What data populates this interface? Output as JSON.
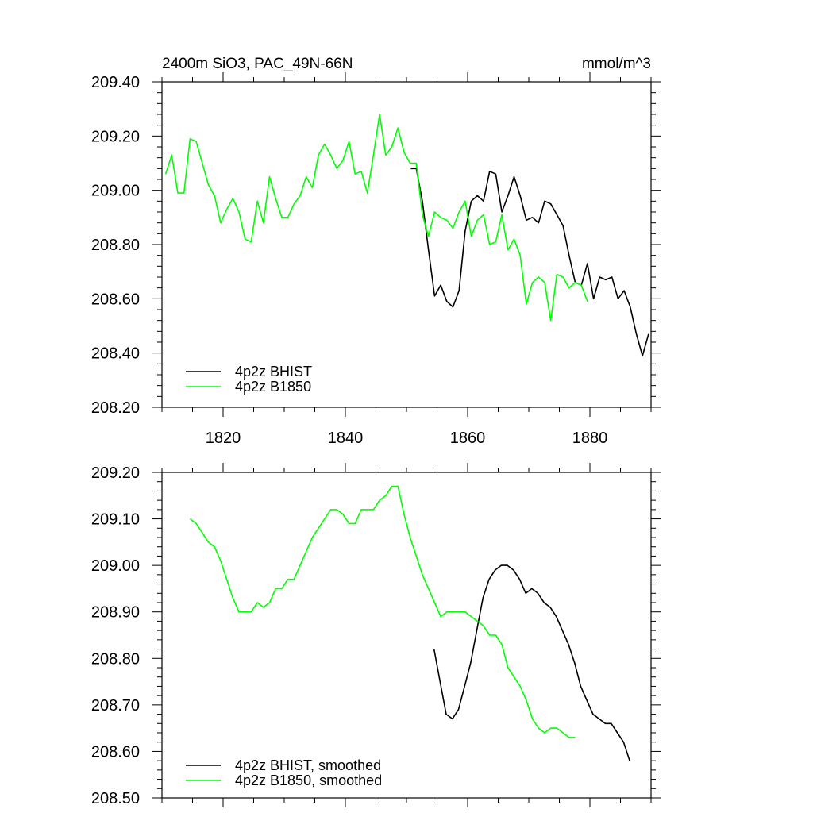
{
  "chart_data": [
    {
      "type": "line",
      "title": "2400m SiO3, PAC_49N-66N",
      "units": "mmol/m^3",
      "xlim": [
        1810,
        1890
      ],
      "ylim": [
        208.2,
        209.4
      ],
      "x_ticks": [
        1820,
        1840,
        1860,
        1880
      ],
      "x_tick_labels": [
        "1820",
        "1840",
        "1860",
        "1880"
      ],
      "y_ticks": [
        208.2,
        208.4,
        208.6,
        208.8,
        209.0,
        209.2,
        209.4
      ],
      "y_tick_labels": [
        "208.20",
        "208.40",
        "208.60",
        "208.80",
        "209.00",
        "209.20",
        "209.40"
      ],
      "legend": {
        "placement": "bottom-left"
      },
      "series": [
        {
          "name": "4p2z BHIST",
          "color": "#000000",
          "x": [
            1850.7,
            1851.6,
            1852.6,
            1853.6,
            1854.6,
            1855.6,
            1856.6,
            1857.6,
            1858.6,
            1859.6,
            1860.6,
            1861.6,
            1862.6,
            1863.6,
            1864.6,
            1865.6,
            1866.6,
            1867.6,
            1868.6,
            1869.6,
            1870.6,
            1871.6,
            1872.6,
            1873.6,
            1874.6,
            1875.6,
            1876.6,
            1877.6,
            1878.6,
            1879.6,
            1880.6,
            1881.6,
            1882.6,
            1883.6,
            1884.6,
            1885.6,
            1886.6,
            1887.6,
            1888.6,
            1889.6
          ],
          "values": [
            209.08,
            209.08,
            208.96,
            208.78,
            208.61,
            208.65,
            208.59,
            208.57,
            208.63,
            208.85,
            208.96,
            208.98,
            208.96,
            209.07,
            209.06,
            208.92,
            208.98,
            209.05,
            208.98,
            208.89,
            208.9,
            208.88,
            208.96,
            208.95,
            208.91,
            208.87,
            208.76,
            208.66,
            208.65,
            208.73,
            208.6,
            208.68,
            208.67,
            208.68,
            208.6,
            208.63,
            208.57,
            208.47,
            208.39,
            208.47
          ]
        },
        {
          "name": "4p2z B1850",
          "color": "#00ff00",
          "x": [
            1810.6,
            1811.6,
            1812.6,
            1813.6,
            1814.6,
            1815.6,
            1816.6,
            1817.6,
            1818.6,
            1819.6,
            1820.6,
            1821.6,
            1822.6,
            1823.6,
            1824.6,
            1825.6,
            1826.6,
            1827.6,
            1828.6,
            1829.6,
            1830.6,
            1831.6,
            1832.6,
            1833.6,
            1834.6,
            1835.6,
            1836.6,
            1837.6,
            1838.6,
            1839.6,
            1840.6,
            1841.6,
            1842.6,
            1843.6,
            1844.6,
            1845.6,
            1846.6,
            1847.6,
            1848.6,
            1849.6,
            1850.6,
            1851.6,
            1852.6,
            1853.6,
            1854.6,
            1855.6,
            1856.6,
            1857.6,
            1858.6,
            1859.6,
            1860.6,
            1861.6,
            1862.6,
            1863.6,
            1864.6,
            1865.6,
            1866.6,
            1867.6,
            1868.6,
            1869.6,
            1870.6,
            1871.6,
            1872.6,
            1873.6,
            1874.6,
            1875.6,
            1876.6,
            1877.6,
            1878.6,
            1879.6
          ],
          "values": [
            209.06,
            209.13,
            208.99,
            208.99,
            209.19,
            209.18,
            209.1,
            209.02,
            208.98,
            208.88,
            208.93,
            208.97,
            208.92,
            208.82,
            208.81,
            208.96,
            208.88,
            209.05,
            208.97,
            208.9,
            208.9,
            208.95,
            208.98,
            209.05,
            209.01,
            209.13,
            209.17,
            209.13,
            209.08,
            209.11,
            209.18,
            209.06,
            209.07,
            208.99,
            209.13,
            209.28,
            209.13,
            209.16,
            209.23,
            209.14,
            209.1,
            209.1,
            208.91,
            208.83,
            208.92,
            208.9,
            208.89,
            208.86,
            208.92,
            208.96,
            208.83,
            208.89,
            208.91,
            208.8,
            208.81,
            208.91,
            208.78,
            208.82,
            208.76,
            208.58,
            208.66,
            208.68,
            208.66,
            208.52,
            208.69,
            208.68,
            208.64,
            208.66,
            208.65,
            208.59
          ]
        }
      ]
    },
    {
      "type": "line",
      "xlim": [
        1810,
        1890
      ],
      "ylim": [
        208.5,
        209.2
      ],
      "x_ticks": [
        1820,
        1840,
        1860,
        1880
      ],
      "y_ticks": [
        208.5,
        208.6,
        208.7,
        208.8,
        208.9,
        209.0,
        209.1,
        209.2
      ],
      "y_tick_labels": [
        "208.50",
        "208.60",
        "208.70",
        "208.80",
        "208.90",
        "209.00",
        "209.10",
        "209.20"
      ],
      "legend": {
        "placement": "bottom-left"
      },
      "series": [
        {
          "name": "4p2z BHIST, smoothed",
          "color": "#000000",
          "x": [
            1854.5,
            1855.5,
            1856.5,
            1857.5,
            1858.5,
            1859.5,
            1860.5,
            1861.5,
            1862.5,
            1863.5,
            1864.5,
            1865.5,
            1866.5,
            1867.5,
            1868.5,
            1869.5,
            1870.5,
            1871.5,
            1872.5,
            1873.5,
            1874.5,
            1875.5,
            1876.5,
            1877.5,
            1878.5,
            1879.5,
            1880.5,
            1881.5,
            1882.5,
            1883.5,
            1884.5,
            1885.5,
            1886.5
          ],
          "values": [
            208.82,
            208.75,
            208.68,
            208.67,
            208.69,
            208.74,
            208.79,
            208.86,
            208.93,
            208.97,
            208.99,
            209.0,
            209.0,
            208.99,
            208.97,
            208.94,
            208.95,
            208.94,
            208.92,
            208.91,
            208.89,
            208.86,
            208.83,
            208.79,
            208.74,
            208.71,
            208.68,
            208.67,
            208.66,
            208.66,
            208.64,
            208.62,
            208.58
          ]
        },
        {
          "name": "4p2z B1850, smoothed",
          "color": "#00ff00",
          "x": [
            1814.6,
            1815.6,
            1816.6,
            1817.6,
            1818.6,
            1819.6,
            1820.6,
            1821.6,
            1822.6,
            1823.6,
            1824.6,
            1825.6,
            1826.6,
            1827.6,
            1828.6,
            1829.6,
            1830.6,
            1831.6,
            1832.6,
            1833.6,
            1834.6,
            1835.6,
            1836.6,
            1837.6,
            1838.6,
            1839.6,
            1840.6,
            1841.6,
            1842.6,
            1843.6,
            1844.6,
            1845.6,
            1846.6,
            1847.6,
            1848.6,
            1849.6,
            1850.6,
            1851.6,
            1852.6,
            1853.6,
            1854.6,
            1855.6,
            1856.6,
            1857.6,
            1858.6,
            1859.6,
            1860.6,
            1861.6,
            1862.6,
            1863.6,
            1864.6,
            1865.6,
            1866.6,
            1867.6,
            1868.6,
            1869.6,
            1870.6,
            1871.6,
            1872.6,
            1873.6,
            1874.6,
            1875.6,
            1876.6,
            1877.6
          ],
          "values": [
            209.1,
            209.09,
            209.07,
            209.05,
            209.04,
            209.01,
            208.97,
            208.93,
            208.9,
            208.9,
            208.9,
            208.92,
            208.91,
            208.92,
            208.95,
            208.95,
            208.97,
            208.97,
            209.0,
            209.03,
            209.06,
            209.08,
            209.1,
            209.12,
            209.12,
            209.11,
            209.09,
            209.09,
            209.12,
            209.12,
            209.12,
            209.14,
            209.15,
            209.17,
            209.17,
            209.11,
            209.06,
            209.02,
            208.98,
            208.95,
            208.92,
            208.89,
            208.9,
            208.9,
            208.9,
            208.9,
            208.89,
            208.88,
            208.87,
            208.85,
            208.85,
            208.83,
            208.78,
            208.76,
            208.74,
            208.71,
            208.67,
            208.65,
            208.64,
            208.65,
            208.65,
            208.64,
            208.63,
            208.63
          ]
        }
      ]
    }
  ]
}
